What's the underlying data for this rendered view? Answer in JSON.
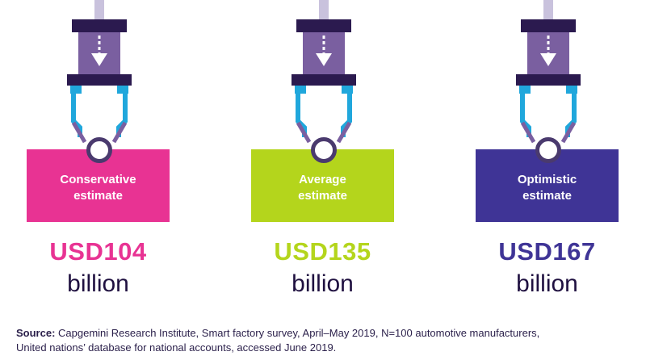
{
  "estimates": [
    {
      "label_line1": "Conservative",
      "label_line2": "estimate",
      "amount": "USD104",
      "unit": "billion",
      "color": "#e83393"
    },
    {
      "label_line1": "Average",
      "label_line2": "estimate",
      "amount": "USD135",
      "unit": "billion",
      "color": "#b4d51c"
    },
    {
      "label_line1": "Optimistic",
      "label_line2": "estimate",
      "amount": "USD167",
      "unit": "billion",
      "color": "#3f3496"
    }
  ],
  "source": {
    "key": "Source:",
    "text": "Capgemini Research Institute, Smart factory survey, April–May 2019, N=100 automotive manufacturers,",
    "text_line2": "United nations’ database for national accounts, accessed June 2019."
  },
  "colors": {
    "claw_dark": "#2b1a4f",
    "claw_mid": "#7a5fa0",
    "claw_rod": "#c9c2dd",
    "claw_arm": "#20a7dc"
  },
  "icons": [
    "claw-crane-icon",
    "down-arrow-icon"
  ]
}
